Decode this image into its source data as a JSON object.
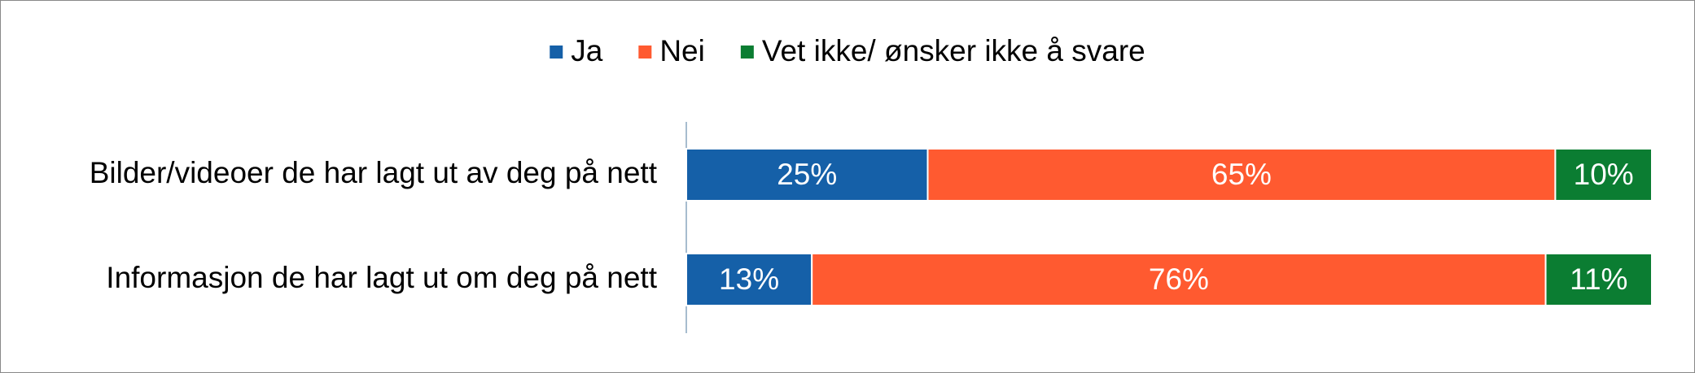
{
  "chart_data": {
    "type": "stacked-bar-horizontal",
    "categories": [
      "Bilder/videoer de har lagt ut av deg på nett",
      "Informasjon de har lagt ut om deg på nett"
    ],
    "series": [
      {
        "name": "Ja",
        "color": "#1560a8",
        "values": [
          25,
          13
        ],
        "value_labels": [
          "25%",
          "13%"
        ]
      },
      {
        "name": "Nei",
        "color": "#ff5a30",
        "values": [
          65,
          76
        ],
        "value_labels": [
          "65%",
          "76%"
        ]
      },
      {
        "name": "Vet ikke/ ønsker ikke å svare",
        "color": "#0b7d32",
        "values": [
          10,
          11
        ],
        "value_labels": [
          "10%",
          "11%"
        ]
      }
    ],
    "xlim": [
      0,
      100
    ],
    "legend": "top"
  }
}
